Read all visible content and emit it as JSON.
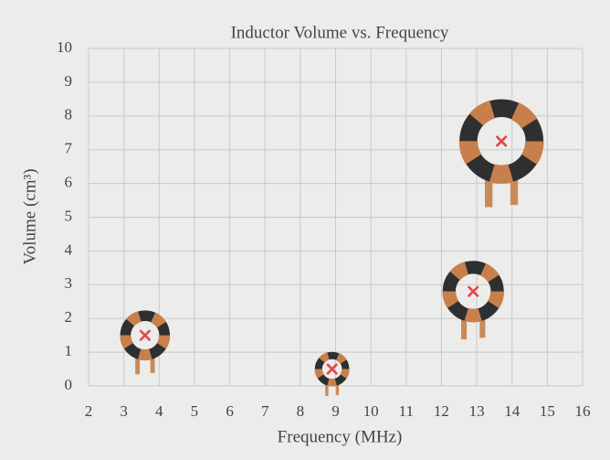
{
  "chart_data": {
    "type": "scatter",
    "title": "Inductor Volume vs. Frequency",
    "x_label": "Frequency (MHz)",
    "y_label": "Volume (cm³)",
    "series": [
      {
        "x": [
          3.6,
          8.9,
          12.9,
          13.7
        ],
        "values": [
          1.5,
          0.5,
          2.8,
          7.25
        ],
        "color": "#e2474a",
        "marker": "x"
      }
    ],
    "xlim": [
      2,
      16
    ],
    "xticks": [
      2,
      3,
      4,
      5,
      6,
      7,
      8,
      9,
      10,
      11,
      12,
      13,
      14,
      15,
      16
    ],
    "ylim": [
      0,
      10
    ],
    "yticks": [
      0,
      1,
      2,
      3,
      4,
      5,
      6,
      7,
      8,
      9,
      10
    ],
    "grid": true
  }
}
